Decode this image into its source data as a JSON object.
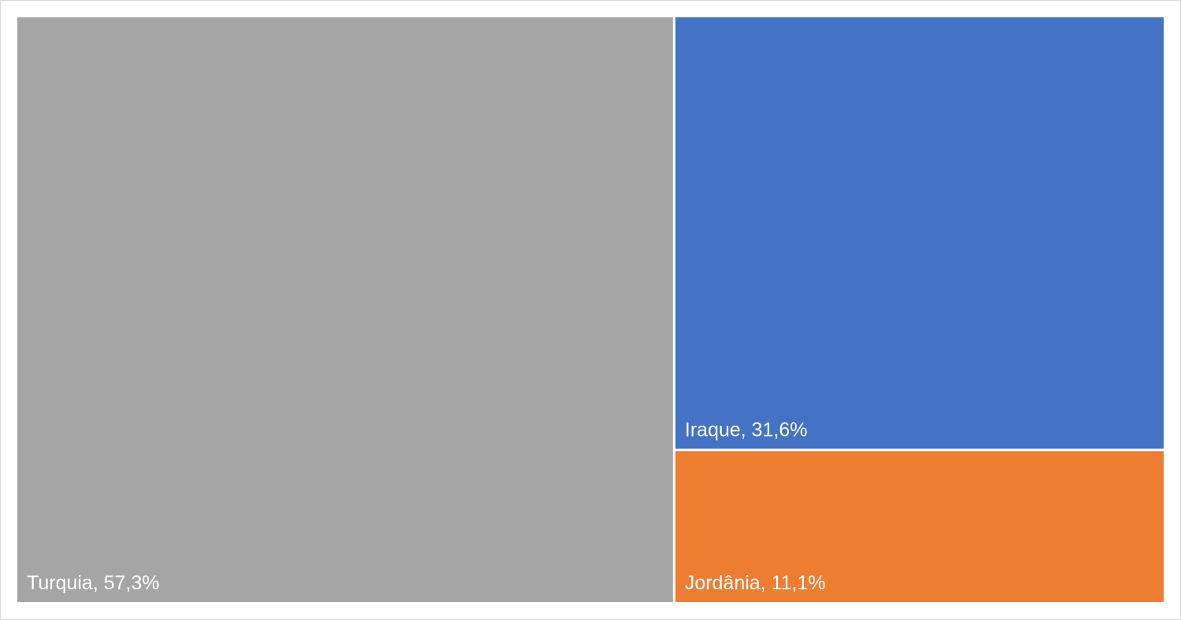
{
  "chart_data": {
    "type": "treemap",
    "values": [
      57.3,
      31.6,
      11.1
    ],
    "value_labels": [
      "Turquia, 57,3%",
      "Iraque, 31,6%",
      "Jordânia, 11,1%"
    ],
    "colors": [
      "#a5a5a5",
      "#4472c4",
      "#ed7d31"
    ]
  }
}
